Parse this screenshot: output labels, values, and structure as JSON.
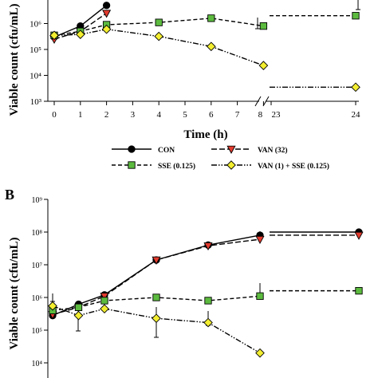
{
  "chart_data": [
    {
      "type": "line",
      "panel": "",
      "xlabel": "Time (h)",
      "ylabel": "Viable count (cfu/mL)",
      "yscale": "log",
      "ylim": [
        1000,
        10000000
      ],
      "x_ticks": [
        "0",
        "1",
        "2",
        "3",
        "4",
        "5",
        "6",
        "7",
        "8",
        "23",
        "24"
      ],
      "y_ticks": [
        "10³",
        "10⁴",
        "10⁵",
        "10⁶",
        "10⁷"
      ],
      "axis_break": "8-23",
      "series": [
        {
          "name": "CON",
          "marker": "circle",
          "color": "#000000",
          "dash": "solid",
          "x": [
            0,
            1,
            2
          ],
          "y": [
            300000,
            800000,
            5000000
          ]
        },
        {
          "name": "VAN (32)",
          "marker": "triangle-down",
          "color": "#e23b2e",
          "dash": "long-dash",
          "x": [
            0,
            1,
            2
          ],
          "y": [
            250000,
            500000,
            2500000
          ]
        },
        {
          "name": "SSE (0.125)",
          "marker": "square",
          "color": "#5cbb3f",
          "dash": "dash",
          "x": [
            0,
            1,
            2,
            4,
            6,
            8,
            24
          ],
          "y": [
            350000,
            500000,
            900000,
            1100000,
            1600000,
            800000,
            2000000
          ]
        },
        {
          "name": "VAN (1) + SSE (0.125)",
          "marker": "diamond",
          "color": "#f3ee30",
          "dash": "dash-dot-dot",
          "x": [
            0,
            1,
            2,
            4,
            6,
            8,
            24
          ],
          "y": [
            350000,
            380000,
            600000,
            320000,
            130000,
            24000,
            3500
          ]
        }
      ]
    },
    {
      "type": "line",
      "panel": "B",
      "xlabel": "",
      "ylabel": "Viable count (cfu/mL)",
      "yscale": "log",
      "ylim": [
        1000,
        1000000000
      ],
      "y_ticks": [
        "10⁴",
        "10⁵",
        "10⁶",
        "10⁷",
        "10⁸",
        "10⁹"
      ],
      "series": [
        {
          "name": "CON",
          "marker": "circle",
          "color": "#000000",
          "dash": "solid",
          "x": [
            0,
            1,
            2,
            4,
            6,
            8,
            24
          ],
          "y": [
            280000,
            620000,
            1200000,
            14000000,
            40000000,
            80000000,
            100000000
          ]
        },
        {
          "name": "VAN (32)",
          "marker": "triangle-down",
          "color": "#e23b2e",
          "dash": "long-dash",
          "x": [
            0,
            1,
            2,
            4,
            6,
            8,
            24
          ],
          "y": [
            300000,
            500000,
            1100000,
            14000000,
            38000000,
            60000000,
            80000000
          ]
        },
        {
          "name": "SSE (0.125)",
          "marker": "square",
          "color": "#5cbb3f",
          "dash": "dash",
          "x": [
            0,
            1,
            2,
            4,
            6,
            8,
            24
          ],
          "y": [
            400000,
            500000,
            800000,
            1000000,
            800000,
            1100000,
            1600000
          ]
        },
        {
          "name": "VAN (1) + SSE (0.125)",
          "marker": "diamond",
          "color": "#f3ee30",
          "dash": "dash-dot-dot",
          "x": [
            0,
            1,
            2,
            4,
            6,
            8,
            24
          ],
          "y": [
            550000,
            280000,
            450000,
            230000,
            170000,
            20000,
            2300
          ]
        }
      ]
    }
  ],
  "legend": [
    {
      "label": "CON",
      "marker": "circle",
      "color": "#000000",
      "dash": "solid"
    },
    {
      "label": "VAN (32)",
      "marker": "triangle-down",
      "color": "#e23b2e",
      "dash": "long-dash"
    },
    {
      "label": "SSE (0.125)",
      "marker": "square",
      "color": "#5cbb3f",
      "dash": "dash"
    },
    {
      "label": "VAN (1) + SSE (0.125)",
      "marker": "diamond",
      "color": "#f3ee30",
      "dash": "dash-dot-dot"
    }
  ]
}
